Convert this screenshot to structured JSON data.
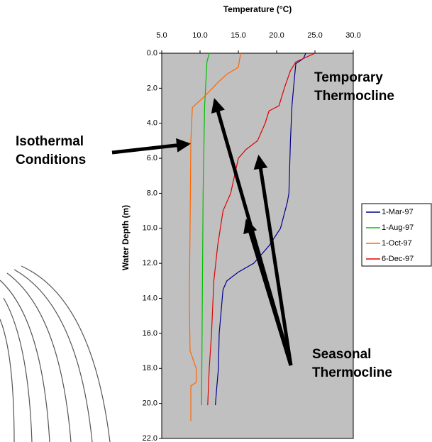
{
  "chart_data": {
    "type": "line",
    "x_label": "Temperature (°C)",
    "y_label": "Water Depth (m)",
    "xlim": [
      5,
      30
    ],
    "xticks": [
      {
        "value": 5,
        "label": "5.0"
      },
      {
        "value": 10,
        "label": "10.0"
      },
      {
        "value": 15,
        "label": "15.0"
      },
      {
        "value": 20,
        "label": "20.0"
      },
      {
        "value": 25,
        "label": "25.0"
      },
      {
        "value": 30,
        "label": "30.0"
      }
    ],
    "ylim": [
      0,
      22
    ],
    "y_inverted": true,
    "yticks": [
      {
        "value": 0,
        "label": "0.0"
      },
      {
        "value": 2,
        "label": "2.0"
      },
      {
        "value": 4,
        "label": "4.0"
      },
      {
        "value": 6,
        "label": "6.0"
      },
      {
        "value": 8,
        "label": "8.0"
      },
      {
        "value": 10,
        "label": "10.0"
      },
      {
        "value": 12,
        "label": "12.0"
      },
      {
        "value": 14,
        "label": "14.0"
      },
      {
        "value": 16,
        "label": "16.0"
      },
      {
        "value": 18,
        "label": "18.0"
      },
      {
        "value": 20,
        "label": "20.0"
      },
      {
        "value": 22,
        "label": "22.0"
      }
    ],
    "legend": "right",
    "series": [
      {
        "name": "1-Mar-97",
        "color": "#00008b",
        "x": [
          23.8,
          23.5,
          22.5,
          22.2,
          22.0,
          21.8,
          21.6,
          21.4,
          20.5,
          19.0,
          17.0,
          15.0,
          13.5,
          13.0,
          12.8,
          12.5,
          12.4,
          12.2,
          12.0
        ],
        "values": [
          0,
          0.3,
          0.6,
          2,
          3,
          5,
          8,
          8.5,
          10,
          11,
          12,
          12.5,
          13,
          13.5,
          14.5,
          16,
          18,
          19,
          20.1
        ]
      },
      {
        "name": "1-Aug-97",
        "color": "#00c000",
        "x": [
          11.2,
          10.9,
          10.6,
          10.4,
          10.3,
          10.2
        ],
        "values": [
          0,
          0.5,
          3,
          8,
          14,
          20.1
        ]
      },
      {
        "name": "1-Oct-97",
        "color": "#ff6600",
        "x": [
          15.3,
          15.0,
          13.5,
          12.5,
          10.5,
          9.0,
          8.8,
          8.7,
          8.6,
          8.7,
          9.5,
          9.5,
          8.8,
          8.8
        ],
        "values": [
          0,
          0.8,
          1.2,
          1.6,
          2.5,
          3.1,
          5,
          10,
          14,
          17,
          18,
          18.8,
          19,
          21.0
        ]
      },
      {
        "name": "6-Dec-97",
        "color": "#e00000",
        "x": [
          25.0,
          24.5,
          22.5,
          21.8,
          21.0,
          20.3,
          19.0,
          18.5,
          17.5,
          16.0,
          15.0,
          14.5,
          14.0,
          13.0,
          12.3,
          11.8,
          11.5,
          11.2,
          11.0
        ],
        "values": [
          0,
          0.1,
          0.5,
          1,
          2,
          3,
          3.3,
          4,
          5,
          5.5,
          6,
          7,
          8,
          9,
          11,
          13,
          16,
          18,
          20.1
        ]
      }
    ],
    "annotations": [
      {
        "lines": [
          "Temporary",
          "Thermocline"
        ]
      },
      {
        "lines": [
          "Isothermal",
          "Conditions"
        ]
      },
      {
        "lines": [
          "Seasonal",
          "Thermocline"
        ]
      }
    ]
  }
}
